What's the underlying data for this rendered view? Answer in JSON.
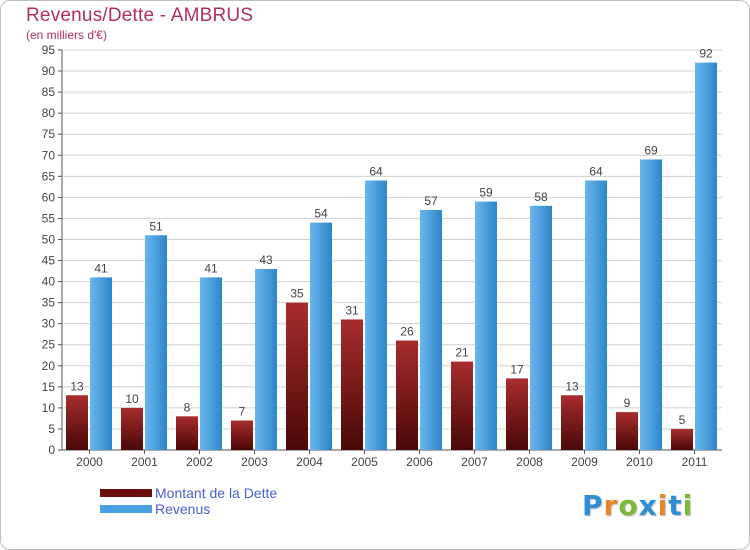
{
  "title": "Revenus/Dette - AMBRUS",
  "subtitle": "(en milliers d'€)",
  "colors": {
    "title": "#b0305a",
    "debt_top": "#a82d2d",
    "debt_bottom": "#4a0808",
    "revenue_light": "#6ab6ee",
    "revenue_dark": "#2d86c8",
    "legend_text": "#4a5fcc"
  },
  "legend": [
    {
      "label": "Montant de la Dette",
      "color": "#6b0e0e"
    },
    {
      "label": "Revenus",
      "color": "#4aa0e0"
    }
  ],
  "logo": {
    "letters": [
      "P",
      "r",
      "o",
      "x",
      "i",
      "t",
      "i"
    ],
    "colors": [
      "#2e8fd6",
      "#e8842a",
      "#7cb83a",
      "#2e8fd6",
      "#e8842a",
      "#2e8fd6",
      "#7cb83a"
    ]
  },
  "chart_data": {
    "type": "bar",
    "title": "Revenus/Dette - AMBRUS",
    "ylabel": "(en milliers d'€)",
    "categories": [
      "2000",
      "2001",
      "2002",
      "2003",
      "2004",
      "2005",
      "2006",
      "2007",
      "2008",
      "2009",
      "2010",
      "2011"
    ],
    "ylim": [
      0,
      95
    ],
    "yticks": [
      0,
      5,
      10,
      15,
      20,
      25,
      30,
      35,
      40,
      45,
      50,
      55,
      60,
      65,
      70,
      75,
      80,
      85,
      90,
      95
    ],
    "grid": true,
    "legend_position": "bottom-left",
    "series": [
      {
        "name": "Montant de la Dette",
        "values": [
          13,
          10,
          8,
          7,
          35,
          31,
          26,
          21,
          17,
          13,
          9,
          5
        ]
      },
      {
        "name": "Revenus",
        "values": [
          41,
          51,
          41,
          43,
          54,
          64,
          57,
          59,
          58,
          64,
          69,
          92
        ]
      }
    ]
  }
}
